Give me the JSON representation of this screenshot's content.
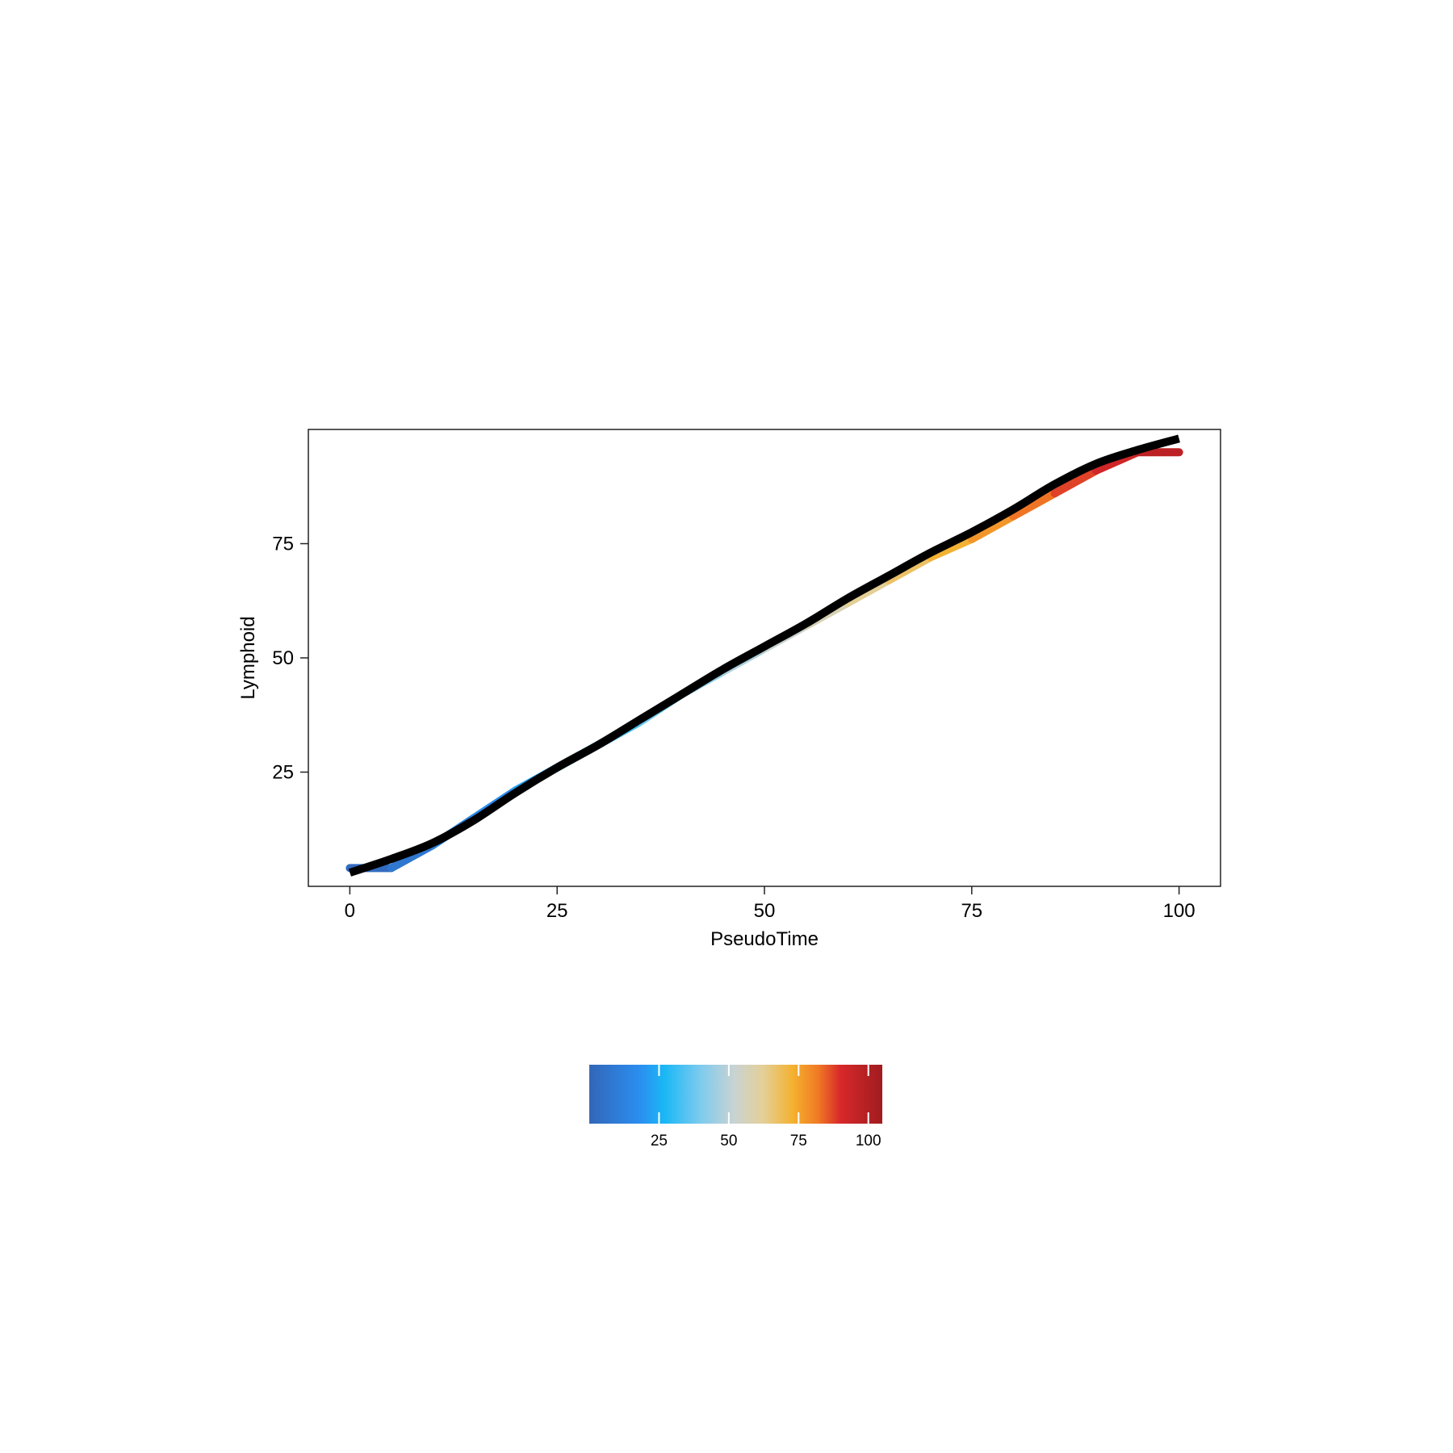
{
  "chart_data": {
    "type": "line",
    "xlabel": "PseudoTime",
    "ylabel": "Lymphoid",
    "xlim": [
      -5,
      105
    ],
    "ylim": [
      0,
      100
    ],
    "x_ticks": [
      0,
      25,
      50,
      75,
      100
    ],
    "x_tick_labels": [
      "0",
      "25",
      "50",
      "75",
      "100"
    ],
    "y_ticks": [
      25,
      50,
      75
    ],
    "y_tick_labels": [
      "25",
      "50",
      "75"
    ],
    "grid": false,
    "legend": "none",
    "series": [
      {
        "role": "colored-trajectory",
        "color_by": "x",
        "x": [
          0,
          5,
          10,
          15,
          20,
          25,
          30,
          35,
          40,
          45,
          50,
          55,
          60,
          65,
          70,
          75,
          80,
          85,
          90,
          95,
          100
        ],
        "y": [
          4,
          4,
          9,
          15,
          21,
          26,
          31,
          36,
          42,
          47,
          52,
          57,
          62,
          67,
          72,
          76,
          81,
          86,
          91,
          95,
          95
        ]
      },
      {
        "role": "smoothed-fit",
        "color": "#000000",
        "x": [
          0,
          5,
          10,
          15,
          20,
          25,
          30,
          35,
          40,
          45,
          50,
          55,
          60,
          65,
          70,
          75,
          80,
          85,
          90,
          95,
          100
        ],
        "y": [
          3,
          6,
          9.5,
          14.5,
          20.5,
          26,
          31,
          36.5,
          42,
          47.5,
          52.5,
          57.5,
          63,
          68,
          73,
          77.5,
          82.5,
          88,
          92.5,
          95.5,
          98
        ]
      }
    ],
    "colorbar": {
      "position": "bottom-center",
      "ticks": [
        25,
        50,
        75,
        100
      ],
      "tick_labels": [
        "25",
        "50",
        "75",
        "100"
      ],
      "range": [
        0,
        105
      ],
      "stops": [
        {
          "value": 0,
          "color": "#3366b8"
        },
        {
          "value": 18,
          "color": "#2b8ef0"
        },
        {
          "value": 27,
          "color": "#1ab8f5"
        },
        {
          "value": 40,
          "color": "#7fcbee"
        },
        {
          "value": 52,
          "color": "#c9d3d2"
        },
        {
          "value": 62,
          "color": "#e3d09a"
        },
        {
          "value": 73,
          "color": "#f4b12f"
        },
        {
          "value": 82,
          "color": "#f07a24"
        },
        {
          "value": 90,
          "color": "#d8282a"
        },
        {
          "value": 105,
          "color": "#a01c1f"
        }
      ]
    }
  }
}
